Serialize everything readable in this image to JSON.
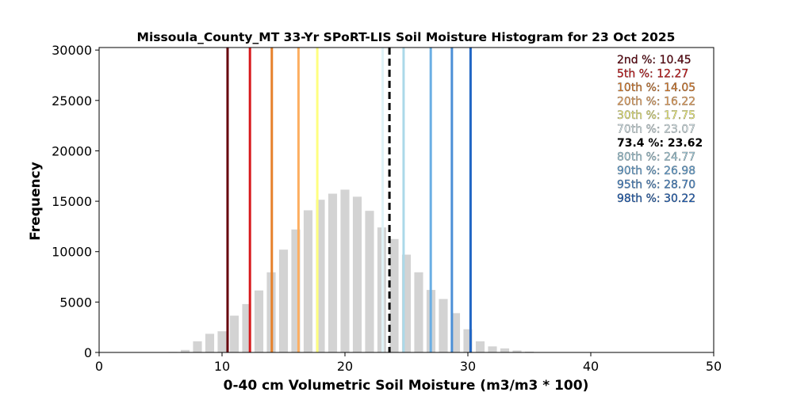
{
  "chart_data": {
    "type": "bar",
    "title": "Missoula_County_MT 33-Yr SPoRT-LIS Soil Moisture Histogram for 23 Oct 2025",
    "xlabel": "0-40 cm Volumetric Soil Moisture (m3/m3 * 100)",
    "ylabel": "Frequency",
    "xlim": [
      0,
      50
    ],
    "ylim": [
      0,
      30250
    ],
    "xticks": [
      0,
      10,
      20,
      30,
      40,
      50
    ],
    "yticks": [
      0,
      5000,
      10000,
      15000,
      20000,
      25000,
      30000
    ],
    "grid": false,
    "bar_color": "#d3d3d3",
    "bin_width": 1,
    "bins": [
      {
        "x": 6,
        "y": 50
      },
      {
        "x": 7,
        "y": 250
      },
      {
        "x": 8,
        "y": 1100
      },
      {
        "x": 9,
        "y": 1850
      },
      {
        "x": 10,
        "y": 2100
      },
      {
        "x": 11,
        "y": 3650
      },
      {
        "x": 12,
        "y": 4800
      },
      {
        "x": 13,
        "y": 6150
      },
      {
        "x": 14,
        "y": 7950
      },
      {
        "x": 15,
        "y": 10200
      },
      {
        "x": 16,
        "y": 12200
      },
      {
        "x": 17,
        "y": 14100
      },
      {
        "x": 18,
        "y": 15150
      },
      {
        "x": 19,
        "y": 15750
      },
      {
        "x": 20,
        "y": 16150
      },
      {
        "x": 21,
        "y": 15450
      },
      {
        "x": 22,
        "y": 14050
      },
      {
        "x": 23,
        "y": 12400
      },
      {
        "x": 24,
        "y": 11250
      },
      {
        "x": 25,
        "y": 9700
      },
      {
        "x": 26,
        "y": 7950
      },
      {
        "x": 27,
        "y": 6200
      },
      {
        "x": 28,
        "y": 5300
      },
      {
        "x": 29,
        "y": 3900
      },
      {
        "x": 30,
        "y": 2300
      },
      {
        "x": 31,
        "y": 1100
      },
      {
        "x": 32,
        "y": 600
      },
      {
        "x": 33,
        "y": 400
      },
      {
        "x": 34,
        "y": 200
      },
      {
        "x": 35,
        "y": 80
      }
    ],
    "percentiles": [
      {
        "label": "2nd %: 10.45",
        "value": 10.45,
        "color": "#67000d",
        "style": "solid"
      },
      {
        "label": "5th %: 12.27",
        "value": 12.27,
        "color": "#d7191c",
        "style": "solid"
      },
      {
        "label": "10th %: 14.05",
        "value": 14.05,
        "color": "#e6812b",
        "style": "solid"
      },
      {
        "label": "20th %: 16.22",
        "value": 16.22,
        "color": "#fdae61",
        "style": "solid"
      },
      {
        "label": "30th %: 17.75",
        "value": 17.75,
        "color": "#ffff80",
        "style": "solid"
      },
      {
        "label": "70th %: 23.07",
        "value": 23.07,
        "color": "#e0f3f8",
        "style": "solid"
      },
      {
        "label": "73.4 %: 23.62",
        "value": 23.62,
        "color": "#000000",
        "style": "dashed",
        "bold": true
      },
      {
        "label": "80th %: 24.77",
        "value": 24.77,
        "color": "#abd9e9",
        "style": "solid"
      },
      {
        "label": "90th %: 26.98",
        "value": 26.98,
        "color": "#6aaee4",
        "style": "solid"
      },
      {
        "label": "95th %: 28.70",
        "value": 28.7,
        "color": "#4c8fd6",
        "style": "solid"
      },
      {
        "label": "98th %: 30.22",
        "value": 30.22,
        "color": "#2166c4",
        "style": "solid"
      }
    ],
    "legend_position": "top-right"
  }
}
